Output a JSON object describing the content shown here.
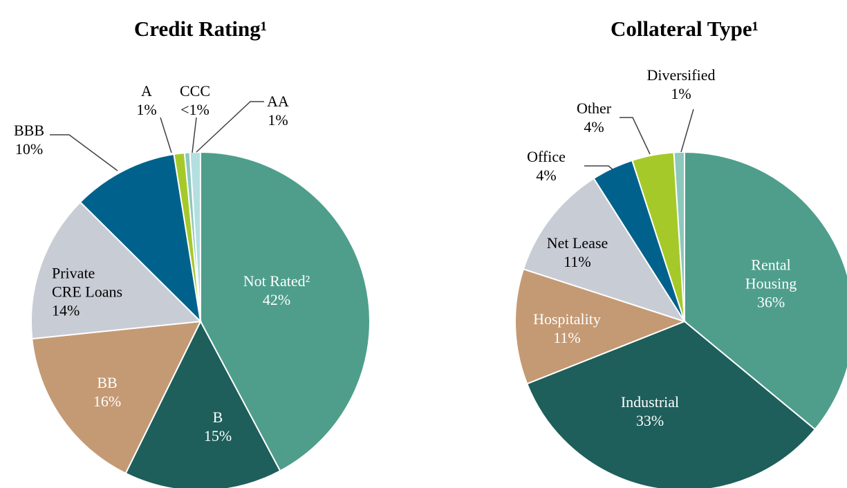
{
  "chart_data": [
    {
      "type": "pie",
      "title": "Credit Rating¹",
      "categories": [
        "Not Rated²",
        "B",
        "BB",
        "Private CRE Loans",
        "BBB",
        "A",
        "CCC",
        "AA"
      ],
      "values": [
        42,
        15,
        16,
        14,
        10,
        1,
        0.5,
        1
      ],
      "value_labels": [
        "42%",
        "15%",
        "16%",
        "14%",
        "10%",
        "1%",
        "<1%",
        "1%"
      ],
      "colors": [
        "#4e9e8b",
        "#1e5e5b",
        "#c49a74",
        "#c8ccd5",
        "#00628c",
        "#a6c92a",
        "#8cc8bc",
        "#b3dfe0"
      ]
    },
    {
      "type": "pie",
      "title": "Collateral Type¹",
      "categories": [
        "Rental Housing",
        "Industrial",
        "Hospitality",
        "Net Lease",
        "Office",
        "Other",
        "Diversified"
      ],
      "values": [
        36,
        33,
        11,
        11,
        4,
        4,
        1
      ],
      "value_labels": [
        "36%",
        "33%",
        "11%",
        "11%",
        "4%",
        "4%",
        "1%"
      ],
      "colors": [
        "#4e9e8b",
        "#1e5e5b",
        "#c49a74",
        "#c8ccd5",
        "#00628c",
        "#a6c92a",
        "#8cc8bc"
      ]
    }
  ]
}
